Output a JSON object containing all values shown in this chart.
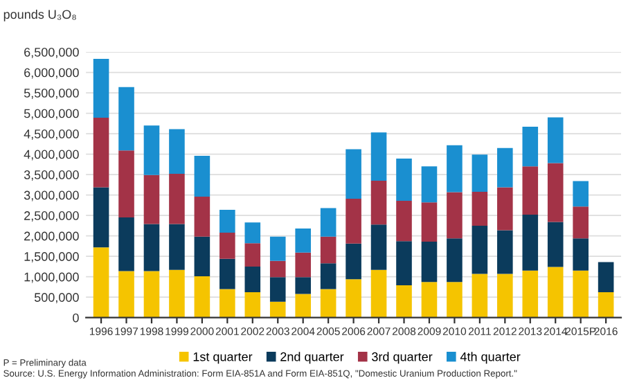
{
  "chart_data": {
    "type": "bar",
    "stacked": true,
    "ylabel": "pounds U₃O₈",
    "categories": [
      "1996",
      "1997",
      "1998",
      "1999",
      "2000",
      "2001",
      "2002",
      "2003",
      "2004",
      "2005",
      "2006",
      "2007",
      "2008",
      "2009",
      "2010",
      "2011",
      "2012",
      "2013",
      "2014",
      "2015P",
      "2016"
    ],
    "series": [
      {
        "name": "1st quarter",
        "color": "#f5c400",
        "values": [
          1720000,
          1140000,
          1140000,
          1170000,
          1010000,
          700000,
          620000,
          390000,
          580000,
          700000,
          940000,
          1170000,
          790000,
          870000,
          870000,
          1070000,
          1070000,
          1150000,
          1240000,
          1150000,
          620000
        ]
      },
      {
        "name": "2nd quarter",
        "color": "#0b3b5c",
        "values": [
          1470000,
          1310000,
          1150000,
          1120000,
          970000,
          740000,
          630000,
          600000,
          410000,
          630000,
          870000,
          1110000,
          1080000,
          990000,
          1070000,
          1180000,
          1070000,
          1370000,
          1100000,
          790000,
          740000
        ]
      },
      {
        "name": "3rd quarter",
        "color": "#a33347",
        "values": [
          1700000,
          1640000,
          1200000,
          1230000,
          980000,
          640000,
          570000,
          400000,
          600000,
          650000,
          1100000,
          1070000,
          990000,
          960000,
          1130000,
          830000,
          1050000,
          1180000,
          1440000,
          780000,
          null
        ]
      },
      {
        "name": "4th quarter",
        "color": "#1a8fd0",
        "values": [
          1440000,
          1550000,
          1210000,
          1090000,
          1000000,
          560000,
          510000,
          590000,
          590000,
          700000,
          1210000,
          1180000,
          1030000,
          880000,
          1150000,
          910000,
          960000,
          970000,
          1120000,
          620000,
          null
        ]
      }
    ],
    "ylim": [
      0,
      6500000
    ],
    "yticks": [
      {
        "value": 0,
        "label": "0"
      },
      {
        "value": 500000,
        "label": "500,000"
      },
      {
        "value": 1000000,
        "label": "1,000,000"
      },
      {
        "value": 1500000,
        "label": "1,500,000"
      },
      {
        "value": 2000000,
        "label": "2,000,000"
      },
      {
        "value": 2500000,
        "label": "2,500,000"
      },
      {
        "value": 3000000,
        "label": "3,000,000"
      },
      {
        "value": 3500000,
        "label": "3,500,000"
      },
      {
        "value": 4000000,
        "label": "4,000,000"
      },
      {
        "value": 4500000,
        "label": "4,500,000"
      },
      {
        "value": 5000000,
        "label": "5,000,000"
      },
      {
        "value": 5500000,
        "label": "5,500,000"
      },
      {
        "value": 6000000,
        "label": "6,000,000"
      },
      {
        "value": 6500000,
        "label": "6,500,000"
      }
    ],
    "grid": "y",
    "legend": "bottom",
    "annotations": [
      "P = Preliminary data",
      "Source: U.S. Energy Information Administration: Form EIA-851A and Form EIA-851Q, \"Domestic Uranium Production Report.\""
    ]
  }
}
